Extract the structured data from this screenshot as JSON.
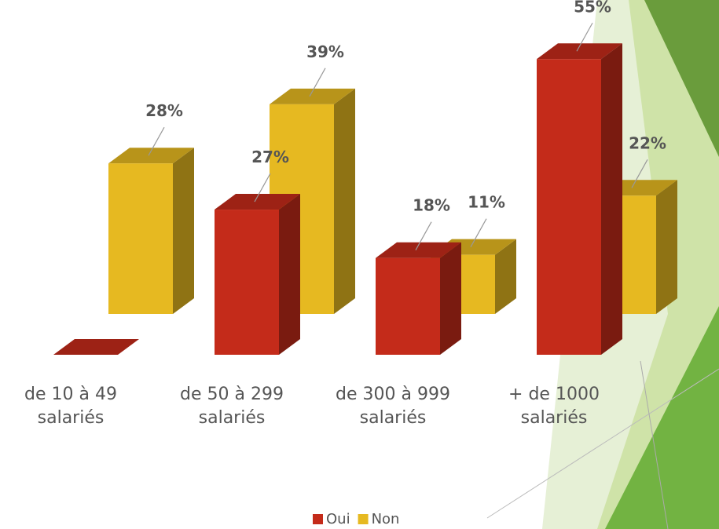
{
  "chart_data": {
    "type": "bar3d",
    "categories": [
      "de 10 à 49 salariés",
      "de 50 à 299 salariés",
      "de 300 à 999 salariés",
      "+ de 1000 salariés"
    ],
    "series": [
      {
        "name": "Oui",
        "color": "#c42b1a",
        "values": [
          0,
          27,
          18,
          55
        ],
        "value_labels": [
          null,
          "27%",
          "18%",
          "55%"
        ]
      },
      {
        "name": "Non",
        "color": "#e6b921",
        "values": [
          28,
          39,
          11,
          22
        ],
        "value_labels": [
          "28%",
          "39%",
          "11%",
          "22%"
        ]
      }
    ],
    "legend": "bottom"
  }
}
